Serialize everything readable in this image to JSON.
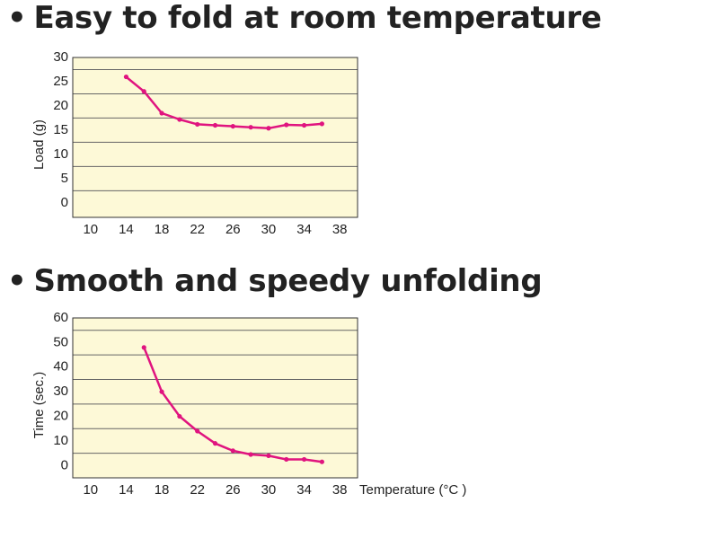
{
  "sections": [
    {
      "bullet": "•",
      "heading": "Easy to fold at room temperature"
    },
    {
      "bullet": "•",
      "heading": "Smooth and speedy unfolding"
    }
  ],
  "colors": {
    "plot_bg": "#fdf9d7",
    "grid": "#666666",
    "line": "#e0147f",
    "text": "#222222"
  },
  "chart_data": [
    {
      "type": "line",
      "title": "",
      "xlabel": "",
      "ylabel": "Load (g)",
      "xlim": [
        8,
        40
      ],
      "ylim": [
        -3,
        30
      ],
      "x_ticks": [
        10,
        14,
        18,
        22,
        26,
        30,
        34,
        38
      ],
      "y_ticks": [
        0,
        5,
        10,
        15,
        20,
        25,
        30
      ],
      "grid": true,
      "series": [
        {
          "x": [
            14,
            16,
            18,
            20,
            22,
            24,
            26,
            28,
            30,
            32,
            34,
            36
          ],
          "y": [
            26,
            23,
            18.5,
            17.2,
            16.2,
            16,
            15.8,
            15.6,
            15.4,
            16.1,
            16,
            16.3
          ]
        }
      ]
    },
    {
      "type": "line",
      "title": "",
      "xlabel": "Temperature (°C )",
      "ylabel": "Time (sec.)",
      "xlim": [
        8,
        40
      ],
      "ylim": [
        -5,
        60
      ],
      "x_ticks": [
        10,
        14,
        18,
        22,
        26,
        30,
        34,
        38
      ],
      "y_ticks": [
        0,
        10,
        20,
        30,
        40,
        50,
        60
      ],
      "grid": true,
      "series": [
        {
          "x": [
            16,
            18,
            20,
            22,
            24,
            26,
            28,
            30,
            32,
            34,
            36
          ],
          "y": [
            48,
            30,
            20,
            14,
            9,
            6,
            4.5,
            4,
            2.5,
            2.5,
            1.5
          ]
        }
      ]
    }
  ]
}
